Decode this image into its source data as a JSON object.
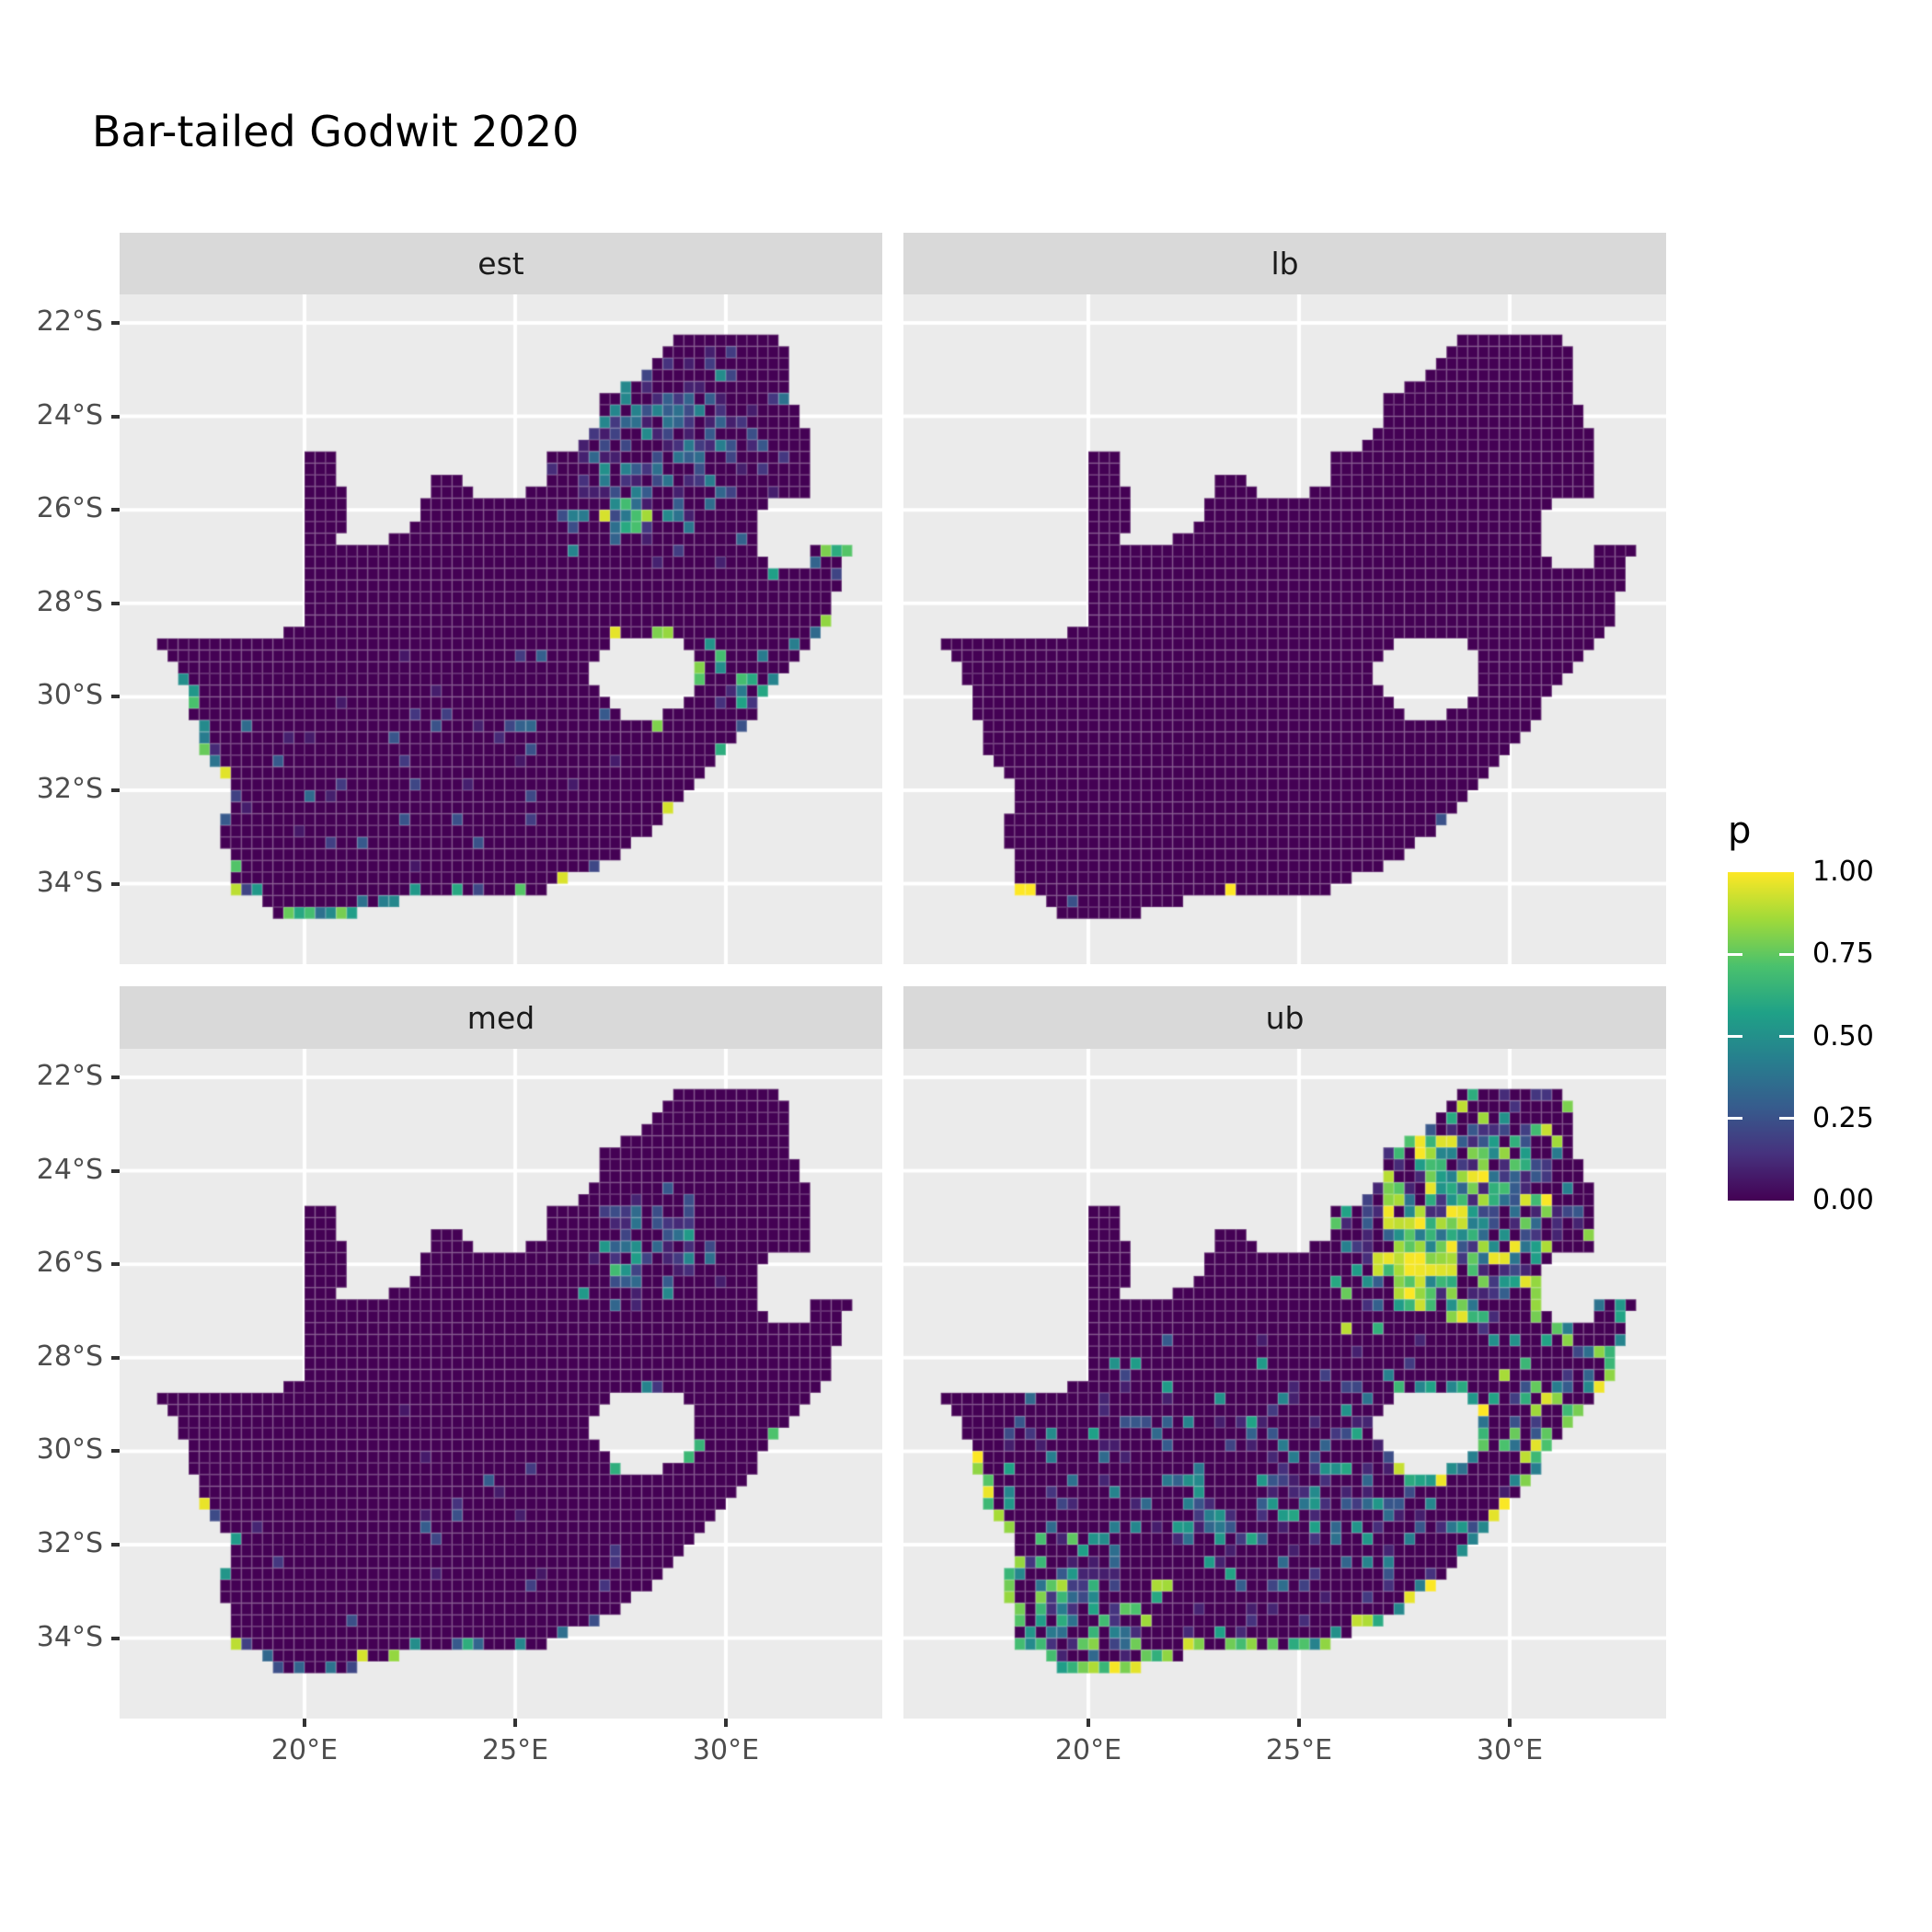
{
  "chart_data": {
    "type": "heatmap",
    "subtype": "faceted-raster-map",
    "title": "Bar-tailed Godwit 2020",
    "facets": [
      "est",
      "lb",
      "med",
      "ub"
    ],
    "legend": {
      "title": "p",
      "labels": [
        "1.00",
        "0.75",
        "0.50",
        "0.25",
        "0.00"
      ],
      "values": [
        1.0,
        0.75,
        0.5,
        0.25,
        0.0
      ]
    },
    "x_axis": {
      "ticks": [
        20,
        25,
        30
      ],
      "labels": [
        "20°E",
        "25°E",
        "30°E"
      ],
      "range": [
        15.6,
        33.7
      ]
    },
    "y_axis": {
      "ticks": [
        -22,
        -24,
        -26,
        -28,
        -30,
        -32,
        -34
      ],
      "labels": [
        "22°S",
        "24°S",
        "26°S",
        "28°S",
        "30°S",
        "32°S",
        "34°S"
      ],
      "range": [
        -35.7,
        -21.4
      ]
    },
    "colors": {
      "panel_bg": "#EBEBEB",
      "strip_bg": "#D9D9D9",
      "grid": "#FFFFFF",
      "base_cell": "#440154",
      "cell_grid": "rgba(255,255,255,0.18)",
      "axis_text": "#4D4D4D",
      "strip_text": "#1A1A1A",
      "tick_mark": "#333333"
    },
    "viridis_stops": [
      [
        0.0,
        "#440154"
      ],
      [
        0.143,
        "#46327e"
      ],
      [
        0.286,
        "#365c8d"
      ],
      [
        0.429,
        "#277f8e"
      ],
      [
        0.571,
        "#1fa187"
      ],
      [
        0.714,
        "#4ac16d"
      ],
      [
        0.857,
        "#a0da39"
      ],
      [
        1.0,
        "#fde725"
      ]
    ],
    "map": {
      "cell_deg": 0.25,
      "outline": [
        [
          16.45,
          -28.6
        ],
        [
          17.35,
          -28.78
        ],
        [
          18.05,
          -28.88
        ],
        [
          18.65,
          -28.84
        ],
        [
          19.25,
          -28.7
        ],
        [
          19.98,
          -28.43
        ],
        [
          19.98,
          -24.76
        ],
        [
          20.65,
          -24.76
        ],
        [
          20.88,
          -25.45
        ],
        [
          20.98,
          -26.05
        ],
        [
          20.82,
          -26.6
        ],
        [
          20.9,
          -26.86
        ],
        [
          21.6,
          -26.86
        ],
        [
          22.1,
          -26.55
        ],
        [
          22.65,
          -26.2
        ],
        [
          22.92,
          -25.55
        ],
        [
          23.05,
          -25.32
        ],
        [
          23.65,
          -25.32
        ],
        [
          23.82,
          -25.58
        ],
        [
          24.3,
          -25.68
        ],
        [
          24.8,
          -25.68
        ],
        [
          25.35,
          -25.62
        ],
        [
          25.62,
          -25.46
        ],
        [
          25.9,
          -24.78
        ],
        [
          26.2,
          -24.65
        ],
        [
          26.48,
          -24.62
        ],
        [
          26.88,
          -24.2
        ],
        [
          26.97,
          -23.68
        ],
        [
          27.55,
          -23.38
        ],
        [
          28.25,
          -22.88
        ],
        [
          29.05,
          -22.22
        ],
        [
          29.7,
          -22.12
        ],
        [
          30.35,
          -22.28
        ],
        [
          31.05,
          -22.3
        ],
        [
          31.4,
          -22.42
        ],
        [
          31.55,
          -23.05
        ],
        [
          31.57,
          -23.65
        ],
        [
          31.8,
          -23.95
        ],
        [
          31.97,
          -24.35
        ],
        [
          32.03,
          -25.1
        ],
        [
          31.97,
          -25.62
        ],
        [
          31.35,
          -25.72
        ],
        [
          30.97,
          -25.88
        ],
        [
          30.8,
          -26.3
        ],
        [
          30.82,
          -26.82
        ],
        [
          31.1,
          -27.18
        ],
        [
          31.6,
          -27.32
        ],
        [
          31.97,
          -27.38
        ],
        [
          32.06,
          -26.86
        ],
        [
          32.89,
          -26.86
        ],
        [
          32.68,
          -27.45
        ],
        [
          32.55,
          -28.2
        ],
        [
          32.0,
          -28.82
        ],
        [
          31.3,
          -29.55
        ],
        [
          30.75,
          -30.25
        ],
        [
          30.25,
          -30.9
        ],
        [
          29.85,
          -31.4
        ],
        [
          29.2,
          -32.05
        ],
        [
          28.4,
          -32.75
        ],
        [
          27.6,
          -33.25
        ],
        [
          26.9,
          -33.7
        ],
        [
          26.1,
          -33.95
        ],
        [
          25.7,
          -33.98
        ],
        [
          25.62,
          -34.15
        ],
        [
          24.9,
          -34.25
        ],
        [
          24.1,
          -34.3
        ],
        [
          23.4,
          -34.35
        ],
        [
          22.8,
          -34.25
        ],
        [
          22.15,
          -34.4
        ],
        [
          21.4,
          -34.6
        ],
        [
          20.7,
          -34.7
        ],
        [
          20.02,
          -34.85
        ],
        [
          19.35,
          -34.68
        ],
        [
          18.95,
          -34.45
        ],
        [
          18.78,
          -34.15
        ],
        [
          18.5,
          -34.45
        ],
        [
          18.32,
          -34.15
        ],
        [
          18.38,
          -33.7
        ],
        [
          18.2,
          -33.25
        ],
        [
          17.88,
          -32.92
        ],
        [
          18.22,
          -32.5
        ],
        [
          18.28,
          -31.9
        ],
        [
          17.95,
          -31.7
        ],
        [
          17.62,
          -31.15
        ],
        [
          17.32,
          -30.5
        ],
        [
          17.12,
          -29.85
        ],
        [
          16.85,
          -29.3
        ],
        [
          16.55,
          -28.85
        ]
      ],
      "lesotho_hole": [
        [
          26.8,
          -29.5
        ],
        [
          26.95,
          -29.0
        ],
        [
          27.45,
          -28.7
        ],
        [
          28.05,
          -28.66
        ],
        [
          28.6,
          -28.64
        ],
        [
          29.0,
          -28.9
        ],
        [
          29.25,
          -29.28
        ],
        [
          29.35,
          -29.65
        ],
        [
          29.05,
          -30.15
        ],
        [
          28.5,
          -30.42
        ],
        [
          27.95,
          -30.55
        ],
        [
          27.6,
          -30.45
        ],
        [
          27.2,
          -30.12
        ],
        [
          26.85,
          -29.78
        ]
      ]
    },
    "hotspots": {
      "est": {
        "clusters": [
          {
            "cx": 28.6,
            "cy": -24.6,
            "rlon": 2.6,
            "rlat": 2.2,
            "n": 200,
            "vmin": 0.08,
            "vmax": 0.5,
            "pow": 2,
            "seed": 11
          },
          {
            "cx": 27.9,
            "cy": -26.1,
            "rlon": 0.75,
            "rlat": 0.6,
            "n": 26,
            "vmin": 0.2,
            "vmax": 1.0,
            "pow": 1.6,
            "seed": 12
          },
          {
            "cx": 23.0,
            "cy": -31.0,
            "rlon": 5.0,
            "rlat": 2.5,
            "n": 45,
            "vmin": 0.06,
            "vmax": 0.35,
            "pow": 1.5,
            "seed": 13
          },
          {
            "cx": 30.8,
            "cy": -29.8,
            "rlon": 1.2,
            "rlat": 1.5,
            "n": 25,
            "vmin": 0.1,
            "vmax": 0.7,
            "pow": 1.5,
            "seed": 14
          }
        ],
        "cells": [
          [
            16.62,
            -28.62,
            0.5
          ],
          [
            18.12,
            -31.87,
            1.0
          ],
          [
            18.38,
            -34.12,
            0.9
          ]
        ],
        "coasts": [
          {
            "lon0": 16.3,
            "lon1": 20.5,
            "lat0": -35.2,
            "lat1": -29.5,
            "density": 0.45,
            "vmin": 0.15,
            "vmax": 1.0,
            "seed": 15
          },
          {
            "lon0": 18.5,
            "lon1": 27.2,
            "lat0": -35.2,
            "lat1": -33.5,
            "density": 0.55,
            "vmin": 0.2,
            "vmax": 1.0,
            "seed": 16
          },
          {
            "lon0": 27.2,
            "lon1": 33.0,
            "lat0": -33.5,
            "lat1": -26.8,
            "density": 0.3,
            "vmin": 0.15,
            "vmax": 1.0,
            "seed": 17
          }
        ]
      },
      "lb": {
        "clusters": [],
        "cells": [
          [
            18.38,
            -34.12,
            1.0
          ],
          [
            18.62,
            -34.12,
            1.0
          ],
          [
            18.38,
            -34.38,
            0.6
          ],
          [
            19.12,
            -34.62,
            1.0
          ],
          [
            19.62,
            -34.38,
            0.25
          ],
          [
            20.12,
            -34.88,
            0.4
          ],
          [
            23.38,
            -34.12,
            1.0
          ],
          [
            24.62,
            -34.28,
            1.0
          ],
          [
            24.88,
            -34.28,
            0.85
          ],
          [
            28.4,
            -32.7,
            0.25
          ],
          [
            31.9,
            -26.9,
            0.3
          ]
        ],
        "coasts": []
      },
      "med": {
        "clusters": [
          {
            "cx": 28.2,
            "cy": -25.6,
            "rlon": 1.6,
            "rlat": 1.3,
            "n": 60,
            "vmin": 0.08,
            "vmax": 0.55,
            "pow": 2,
            "seed": 21
          },
          {
            "cx": 27.9,
            "cy": -26.1,
            "rlon": 0.5,
            "rlat": 0.45,
            "n": 10,
            "vmin": 0.2,
            "vmax": 0.85,
            "pow": 1.5,
            "seed": 22
          },
          {
            "cx": 24.0,
            "cy": -31.5,
            "rlon": 5.0,
            "rlat": 2.5,
            "n": 25,
            "vmin": 0.06,
            "vmax": 0.3,
            "pow": 1.5,
            "seed": 23
          }
        ],
        "cells": [
          [
            18.38,
            -34.12,
            0.9
          ],
          [
            17.12,
            -32.87,
            0.5
          ]
        ],
        "coasts": [
          {
            "lon0": 16.3,
            "lon1": 20.5,
            "lat0": -35.2,
            "lat1": -31.0,
            "density": 0.35,
            "vmin": 0.15,
            "vmax": 1.0,
            "seed": 24
          },
          {
            "lon0": 18.5,
            "lon1": 27.2,
            "lat0": -35.2,
            "lat1": -33.5,
            "density": 0.4,
            "vmin": 0.15,
            "vmax": 1.0,
            "seed": 25
          },
          {
            "lon0": 27.2,
            "lon1": 33.0,
            "lat0": -33.5,
            "lat1": -27.0,
            "density": 0.18,
            "vmin": 0.1,
            "vmax": 0.9,
            "seed": 26
          }
        ]
      },
      "ub": {
        "clusters": [
          {
            "cx": 28.6,
            "cy": -24.8,
            "rlon": 2.8,
            "rlat": 2.5,
            "n": 520,
            "vmin": 0.1,
            "vmax": 1.0,
            "pow": 2.2,
            "seed": 31
          },
          {
            "cx": 27.9,
            "cy": -26.15,
            "rlon": 0.9,
            "rlat": 0.7,
            "n": 60,
            "vmin": 0.4,
            "vmax": 1.0,
            "pow": 1.2,
            "seed": 32
          },
          {
            "cx": 27.85,
            "cy": -26.1,
            "rlon": 0.3,
            "rlat": 0.25,
            "n": 14,
            "vmin": 0.8,
            "vmax": 1.0,
            "pow": 1,
            "seed": 33
          },
          {
            "cx": 24.0,
            "cy": -31.0,
            "rlon": 6.0,
            "rlat": 3.0,
            "n": 260,
            "vmin": 0.08,
            "vmax": 0.6,
            "pow": 2,
            "seed": 34
          },
          {
            "cx": 19.5,
            "cy": -33.5,
            "rlon": 2.2,
            "rlat": 1.6,
            "n": 120,
            "vmin": 0.1,
            "vmax": 0.9,
            "pow": 1.8,
            "seed": 35
          },
          {
            "cx": 30.9,
            "cy": -29.5,
            "rlon": 1.3,
            "rlat": 2.0,
            "n": 80,
            "vmin": 0.15,
            "vmax": 1.0,
            "pow": 1.6,
            "seed": 36
          }
        ],
        "cells": [],
        "coasts": [
          {
            "lon0": 16.3,
            "lon1": 20.5,
            "lat0": -35.2,
            "lat1": -30.0,
            "density": 0.8,
            "vmin": 0.35,
            "vmax": 1.0,
            "seed": 37
          },
          {
            "lon0": 18.5,
            "lon1": 27.2,
            "lat0": -35.2,
            "lat1": -33.5,
            "density": 0.85,
            "vmin": 0.4,
            "vmax": 1.0,
            "seed": 38
          },
          {
            "lon0": 27.2,
            "lon1": 33.0,
            "lat0": -33.5,
            "lat1": -26.8,
            "density": 0.7,
            "vmin": 0.35,
            "vmax": 1.0,
            "seed": 39
          }
        ]
      }
    }
  }
}
